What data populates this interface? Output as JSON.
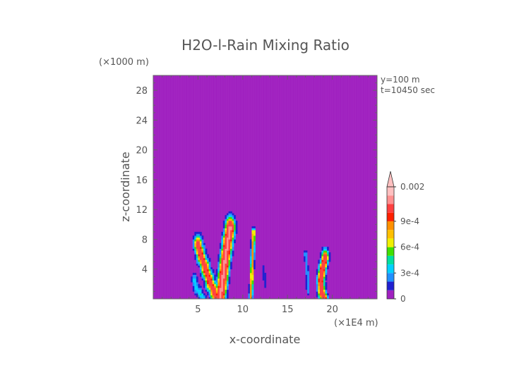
{
  "chart_data": {
    "type": "heatmap",
    "title": "H2O-l-Rain Mixing Ratio",
    "xlabel": "x-coordinate",
    "ylabel": "z-coordinate",
    "x_scale_label": "(×1E4 m)",
    "y_scale_label": "(×1000 m)",
    "annotations": [
      "y=100 m",
      "t=10450 sec"
    ],
    "xlim": [
      0,
      25
    ],
    "ylim": [
      0,
      30
    ],
    "x_ticks": [
      5,
      10,
      15,
      20
    ],
    "y_ticks": [
      4,
      8,
      12,
      16,
      20,
      24,
      28
    ],
    "colorbar": {
      "levels": [
        0,
        0.0001,
        0.0002,
        0.0003,
        0.0004,
        0.0005,
        0.0006,
        0.0007,
        0.0008,
        0.0009,
        0.001,
        0.0015,
        0.002
      ],
      "colors": [
        "#a020c0",
        "#2020d0",
        "#2090ff",
        "#00d0ff",
        "#00e0a0",
        "#40e000",
        "#f0f000",
        "#ffc000",
        "#ff9000",
        "#ff2000",
        "#ff4040",
        "#ff9090",
        "#ffc0c0"
      ],
      "tick_labels": [
        "0",
        "3e-4",
        "6e-4",
        "9e-4",
        "0.002"
      ],
      "tick_values": [
        0,
        0.0003,
        0.0006,
        0.0009,
        0.002
      ],
      "extend": "max"
    },
    "background_value": 0,
    "features": [
      {
        "name": "cell-left",
        "x": [
          5.0,
          5.3,
          5.8,
          6.3,
          6.8,
          7.0
        ],
        "z": [
          7.2,
          6.0,
          4.2,
          2.4,
          1.0,
          0.1
        ],
        "peak": 0.0012,
        "width": 0.7
      },
      {
        "name": "cell-main",
        "x": [
          8.6,
          8.3,
          8.0,
          7.8,
          7.6,
          7.5
        ],
        "z": [
          9.5,
          7.5,
          5.0,
          3.0,
          1.2,
          0.1
        ],
        "peak": 0.0016,
        "width": 0.8
      },
      {
        "name": "cell-thin",
        "x": [
          11.2,
          11.1,
          11.0,
          10.9
        ],
        "z": [
          9.0,
          6.0,
          3.0,
          0.2
        ],
        "peak": 0.0009,
        "width": 0.3
      },
      {
        "name": "cell-right",
        "x": [
          19.2,
          18.9,
          18.7,
          18.8,
          19.1
        ],
        "z": [
          5.5,
          4.0,
          2.5,
          1.0,
          0.1
        ],
        "peak": 0.0013,
        "width": 0.6
      },
      {
        "name": "cell-far-left",
        "x": [
          4.6,
          4.8,
          5.2,
          5.6
        ],
        "z": [
          2.5,
          1.5,
          0.8,
          0.1
        ],
        "peak": 0.0004,
        "width": 0.5
      },
      {
        "name": "cell-weak-a",
        "x": [
          17.0,
          17.2,
          17.3
        ],
        "z": [
          6.0,
          3.5,
          1.0
        ],
        "peak": 0.0003,
        "width": 0.3
      },
      {
        "name": "cell-weak-b",
        "x": [
          12.3,
          12.5
        ],
        "z": [
          4.0,
          2.0
        ],
        "peak": 0.0002,
        "width": 0.3
      }
    ]
  }
}
